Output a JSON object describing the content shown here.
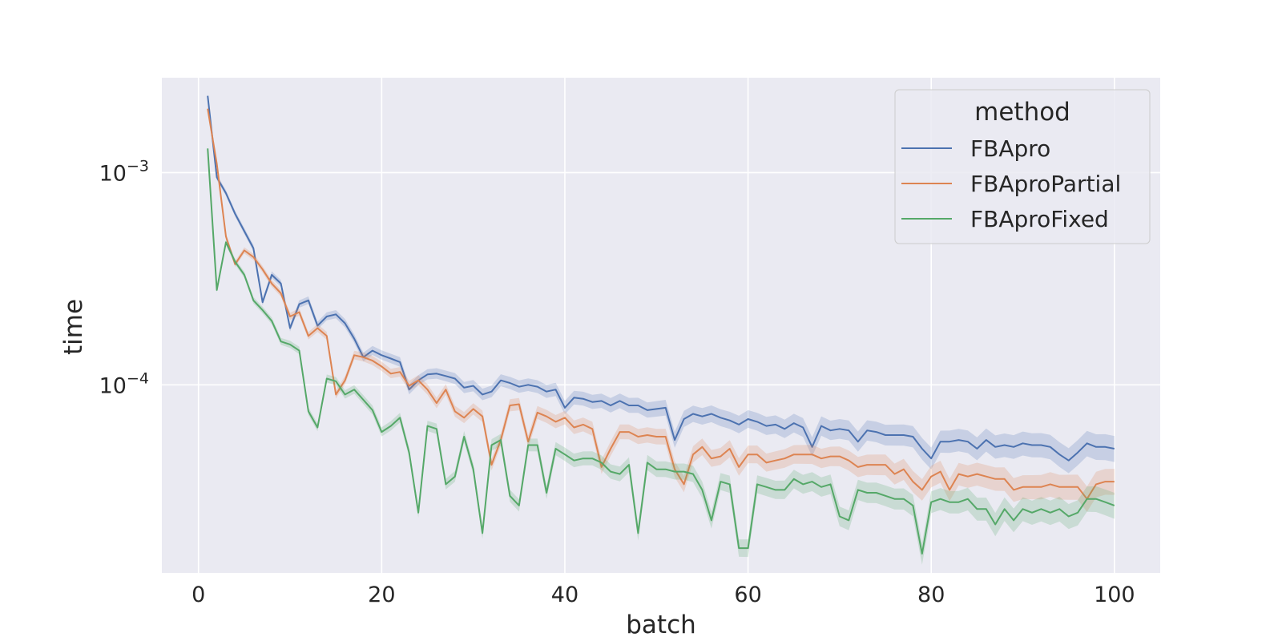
{
  "chart_data": {
    "type": "line",
    "title": "",
    "xlabel": "batch",
    "ylabel": "time",
    "xlim": [
      -4,
      105
    ],
    "ylim": [
      1.3e-05,
      0.0028
    ],
    "yscale": "log",
    "grid": true,
    "background": "#eaeaf2",
    "x_ticks": [
      0,
      20,
      40,
      60,
      80,
      100
    ],
    "x_tick_labels": [
      "0",
      "20",
      "40",
      "60",
      "80",
      "100"
    ],
    "y_ticks": [
      0.0001,
      0.001
    ],
    "y_tick_labels": [
      {
        "base": "10",
        "exp": "−4"
      },
      {
        "base": "10",
        "exp": "−3"
      }
    ],
    "legend": {
      "title": "method",
      "position": "top-right"
    },
    "x": [
      1,
      2,
      3,
      4,
      5,
      6,
      7,
      8,
      9,
      10,
      11,
      12,
      13,
      14,
      15,
      16,
      17,
      18,
      19,
      20,
      21,
      22,
      23,
      24,
      25,
      26,
      27,
      28,
      29,
      30,
      31,
      32,
      33,
      34,
      35,
      36,
      37,
      38,
      39,
      40,
      41,
      42,
      43,
      44,
      45,
      46,
      47,
      48,
      49,
      50,
      51,
      52,
      53,
      54,
      55,
      56,
      57,
      58,
      59,
      60,
      61,
      62,
      63,
      64,
      65,
      66,
      67,
      68,
      69,
      70,
      71,
      72,
      73,
      74,
      75,
      76,
      77,
      78,
      79,
      80,
      81,
      82,
      83,
      84,
      85,
      86,
      87,
      88,
      89,
      90,
      91,
      92,
      93,
      94,
      95,
      96,
      97,
      98,
      99,
      100
    ],
    "series": [
      {
        "name": "FBApro",
        "color": "#4c72b0",
        "values": [
          0.0023,
          0.00095,
          0.0008,
          0.00064,
          0.00053,
          0.00044,
          0.000245,
          0.00033,
          0.0003,
          0.000185,
          0.00024,
          0.00025,
          0.00019,
          0.00021,
          0.000215,
          0.000195,
          0.000165,
          0.000135,
          0.000145,
          0.000138,
          0.000133,
          0.000128,
          9.5e-05,
          0.000105,
          0.000112,
          0.000113,
          0.00011,
          0.000107,
          9.7e-05,
          9.9e-05,
          9e-05,
          9.3e-05,
          0.000105,
          0.000102,
          9.8e-05,
          0.0001,
          9.8e-05,
          9.3e-05,
          9.5e-05,
          7.8e-05,
          8.7e-05,
          8.6e-05,
          8.3e-05,
          8.4e-05,
          8e-05,
          8.4e-05,
          8e-05,
          8e-05,
          7.6e-05,
          7.7e-05,
          7.8e-05,
          5.5e-05,
          6.9e-05,
          7.3e-05,
          7.1e-05,
          7.3e-05,
          7e-05,
          6.8e-05,
          6.5e-05,
          6.9e-05,
          6.7e-05,
          6.4e-05,
          6.5e-05,
          6.2e-05,
          6.6e-05,
          6.3e-05,
          5.1e-05,
          6.4e-05,
          6.1e-05,
          6.2e-05,
          6.1e-05,
          5.4e-05,
          6.1e-05,
          6e-05,
          5.8e-05,
          5.8e-05,
          5.8e-05,
          5.7e-05,
          5e-05,
          4.5e-05,
          5.4e-05,
          5.4e-05,
          5.5e-05,
          5.4e-05,
          5e-05,
          5.5e-05,
          5.1e-05,
          5.2e-05,
          5.1e-05,
          5.3e-05,
          5.2e-05,
          5.2e-05,
          5.1e-05,
          4.7e-05,
          4.4e-05,
          4.8e-05,
          5.3e-05,
          5.1e-05,
          5.1e-05,
          5e-05
        ]
      },
      {
        "name": "FBAproPartial",
        "color": "#dd8452",
        "values": [
          0.002,
          0.0011,
          0.0005,
          0.00037,
          0.00043,
          0.0004,
          0.00035,
          0.0003,
          0.00027,
          0.00021,
          0.00022,
          0.00017,
          0.000185,
          0.00017,
          9e-05,
          0.000105,
          0.000138,
          0.000135,
          0.00013,
          0.000122,
          0.000113,
          0.000115,
          9.9e-05,
          0.000105,
          9.5e-05,
          8.2e-05,
          9.5e-05,
          7.5e-05,
          7e-05,
          7.7e-05,
          7.1e-05,
          4.2e-05,
          5.5e-05,
          8e-05,
          8.1e-05,
          5.4e-05,
          7.4e-05,
          7.1e-05,
          6.7e-05,
          7e-05,
          6.3e-05,
          6.5e-05,
          6.2e-05,
          4.1e-05,
          5e-05,
          6e-05,
          6e-05,
          5.7e-05,
          5.8e-05,
          5.7e-05,
          5.7e-05,
          4e-05,
          3.4e-05,
          4.7e-05,
          5.1e-05,
          4.5e-05,
          4.6e-05,
          5e-05,
          4.1e-05,
          4.7e-05,
          4.7e-05,
          4.3e-05,
          4.4e-05,
          4.5e-05,
          4.7e-05,
          4.7e-05,
          4.7e-05,
          4.5e-05,
          4.6e-05,
          4.6e-05,
          4.4e-05,
          4.1e-05,
          4.2e-05,
          4.2e-05,
          4.2e-05,
          3.8e-05,
          4e-05,
          3.5e-05,
          3.2e-05,
          3.7e-05,
          3.9e-05,
          3.2e-05,
          3.8e-05,
          3.7e-05,
          3.8e-05,
          3.7e-05,
          3.6e-05,
          3.6e-05,
          3.2e-05,
          3.3e-05,
          3.3e-05,
          3.3e-05,
          3.4e-05,
          3.3e-05,
          3.3e-05,
          3.3e-05,
          2.9e-05,
          3.4e-05,
          3.5e-05,
          3.5e-05
        ]
      },
      {
        "name": "FBAproFixed",
        "color": "#55a868",
        "values": [
          0.0013,
          0.00028,
          0.00047,
          0.00038,
          0.00033,
          0.00025,
          0.000225,
          0.0002,
          0.00016,
          0.000155,
          0.000145,
          7.5e-05,
          6.3e-05,
          0.000107,
          0.000104,
          9e-05,
          9.5e-05,
          8.5e-05,
          7.6e-05,
          6e-05,
          6.4e-05,
          7e-05,
          4.8e-05,
          2.5e-05,
          6.4e-05,
          6.2e-05,
          3.4e-05,
          3.7e-05,
          5.7e-05,
          4e-05,
          2e-05,
          5.2e-05,
          5.5e-05,
          3e-05,
          2.7e-05,
          5.2e-05,
          5.2e-05,
          3.1e-05,
          5e-05,
          4.7e-05,
          4.4e-05,
          4.5e-05,
          4.5e-05,
          4.3e-05,
          3.9e-05,
          3.8e-05,
          4.2e-05,
          2e-05,
          4.3e-05,
          4e-05,
          4e-05,
          3.9e-05,
          3.9e-05,
          3.8e-05,
          3.2e-05,
          2.3e-05,
          3.5e-05,
          3.4e-05,
          1.7e-05,
          1.7e-05,
          3.4e-05,
          3.3e-05,
          3.2e-05,
          3.2e-05,
          3.6e-05,
          3.4e-05,
          3.5e-05,
          3.3e-05,
          3.4e-05,
          2.4e-05,
          2.3e-05,
          3.2e-05,
          3.1e-05,
          3.1e-05,
          3e-05,
          2.9e-05,
          2.9e-05,
          2.7e-05,
          1.6e-05,
          2.8e-05,
          2.9e-05,
          2.8e-05,
          2.8e-05,
          2.9e-05,
          2.6e-05,
          2.6e-05,
          2.2e-05,
          2.6e-05,
          2.3e-05,
          2.6e-05,
          2.5e-05,
          2.6e-05,
          2.5e-05,
          2.6e-05,
          2.4e-05,
          2.5e-05,
          2.9e-05,
          2.9e-05,
          2.8e-05,
          2.7e-05
        ]
      }
    ]
  }
}
